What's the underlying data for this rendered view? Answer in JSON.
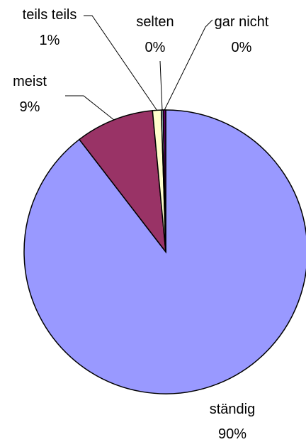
{
  "chart_data": {
    "type": "pie",
    "title": "",
    "start": "top",
    "direction": "clockwise",
    "slices": [
      {
        "label": "ständig",
        "percent_label": "90%",
        "value": 90,
        "color": "#9999FF"
      },
      {
        "label": "meist",
        "percent_label": "9%",
        "value": 9,
        "color": "#993366"
      },
      {
        "label": "teils teils",
        "percent_label": "1%",
        "value": 1,
        "color": "#FFFFCC"
      },
      {
        "label": "selten",
        "percent_label": "0%",
        "value": 0.2,
        "color": "#CCFFFF"
      },
      {
        "label": "gar nicht",
        "percent_label": "0%",
        "value": 0.3,
        "color": "#660066"
      }
    ]
  }
}
